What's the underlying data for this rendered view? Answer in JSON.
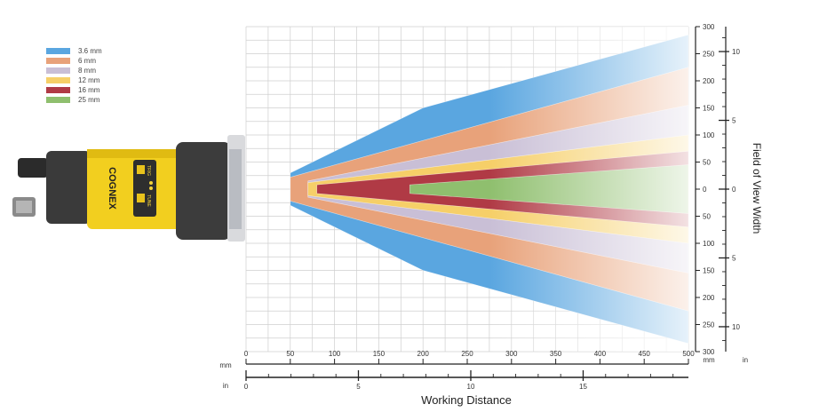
{
  "chart_data": {
    "type": "area",
    "xlabel": "Working Distance",
    "ylabel": "Field of View Width",
    "x_unit_primary": "mm",
    "x_unit_secondary": "in",
    "y_unit_primary": "mm",
    "y_unit_secondary": "in",
    "xlim": [
      0,
      500
    ],
    "ylim": [
      -300,
      300
    ],
    "x_ticks_mm": [
      0,
      50,
      100,
      150,
      200,
      250,
      300,
      350,
      400,
      450,
      500
    ],
    "x_ticks_in": [
      0,
      5,
      10,
      15
    ],
    "y_ticks_mm": [
      300,
      250,
      200,
      150,
      100,
      50,
      0,
      50,
      100,
      150,
      200,
      250,
      300
    ],
    "y_ticks_in": [
      10,
      5,
      0,
      5,
      10
    ],
    "grid": true,
    "legend_position": "top-left",
    "series": [
      {
        "name": "3.6 mm",
        "color": "#5aa6e0",
        "x": [
          50,
          200,
          500
        ],
        "half_width": [
          30,
          150,
          285
        ]
      },
      {
        "name": "6 mm",
        "color": "#e8a27a",
        "x": [
          50,
          500
        ],
        "half_width": [
          22,
          225
        ]
      },
      {
        "name": "8 mm",
        "color": "#c9bfd6",
        "x": [
          70,
          500
        ],
        "half_width": [
          15,
          155
        ]
      },
      {
        "name": "12 mm",
        "color": "#f6cf68",
        "x": [
          70,
          500
        ],
        "half_width": [
          12,
          100
        ]
      },
      {
        "name": "16 mm",
        "color": "#b03a45",
        "x": [
          80,
          500
        ],
        "half_width": [
          8,
          70
        ]
      },
      {
        "name": "25 mm",
        "color": "#8fbf6e",
        "x": [
          185,
          500
        ],
        "half_width": [
          8,
          45
        ]
      }
    ]
  },
  "labels": {
    "mm_left": "mm",
    "in_left": "in",
    "mm_right": "mm",
    "in_right": "in"
  },
  "camera": {
    "brand": "COGNEX",
    "button_trig": "TRIG",
    "button_tune": "TUNE"
  }
}
